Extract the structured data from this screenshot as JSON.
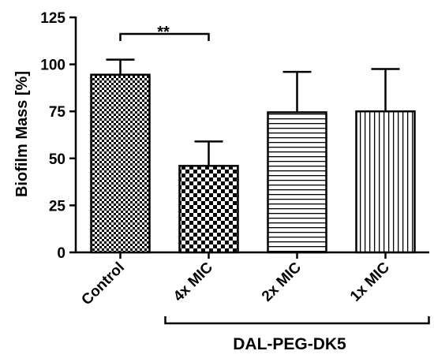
{
  "chart_data": {
    "type": "bar",
    "title": "",
    "xlabel": "",
    "ylabel": "Biofilm Mass [%]",
    "ylim": [
      0,
      125
    ],
    "yticks": [
      "0",
      "25",
      "50",
      "75",
      "100",
      "125"
    ],
    "categories": [
      "Control",
      "4x MIC",
      "2x MIC",
      "1x MIC"
    ],
    "values": [
      94.5,
      46,
      74.5,
      75
    ],
    "errors": [
      8,
      13,
      21.5,
      22.5
    ],
    "fill_patterns": [
      "fine-checker",
      "coarse-checker",
      "horizontal-lines",
      "vertical-lines"
    ],
    "grid": false,
    "group_bracket": {
      "label": "DAL-PEG-DK5",
      "spans": [
        "4x MIC",
        "2x MIC",
        "1x MIC"
      ]
    },
    "significance": {
      "label": "**",
      "between": [
        "Control",
        "4x MIC"
      ]
    }
  }
}
